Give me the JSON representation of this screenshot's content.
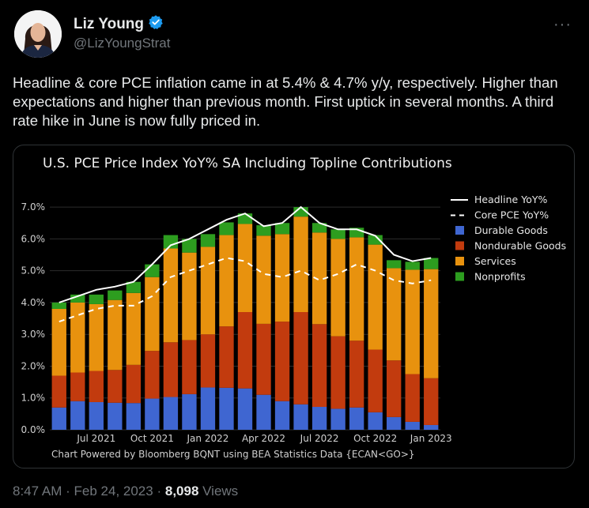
{
  "tweet": {
    "author_name": "Liz Young",
    "handle": "@LizYoungStrat",
    "more_label": "···",
    "text": "Headline & core PCE inflation came in at 5.4% & 4.7% y/y, respectively. Higher than expectations and higher than previous month. First uptick in several months. A third rate hike in June is now fully priced in.",
    "time": "8:47 AM",
    "date": "Feb 24, 2023",
    "separator": "·",
    "views_count": "8,098",
    "views_label": "Views"
  },
  "colors": {
    "background": "#000000",
    "durable": "#3f66d1",
    "nondurable": "#c23b0e",
    "services": "#e8920e",
    "nonprofits": "#2d9d1f",
    "headline": "#ffffff",
    "core": "#ffffff",
    "verified_badge": "#1d9bf0"
  },
  "icons": {
    "verified": "verified-badge-icon",
    "more": "more-options-icon"
  },
  "chart_data": {
    "type": "bar",
    "stacked": true,
    "title": "U.S. PCE Price Index YoY% SA Including Topline Contributions",
    "footer": "Chart Powered by Bloomberg BQNT using BEA Statistics Data    {ECAN<GO>}",
    "ylim": [
      0,
      7.4
    ],
    "yticks": [
      0,
      1,
      2,
      3,
      4,
      5,
      6,
      7
    ],
    "ytick_labels": [
      "0.0%",
      "1.0%",
      "2.0%",
      "3.0%",
      "4.0%",
      "5.0%",
      "6.0%",
      "7.0%"
    ],
    "x_tick_labels": [
      {
        "index": 2,
        "label": "Jul 2021"
      },
      {
        "index": 5,
        "label": "Oct 2021"
      },
      {
        "index": 8,
        "label": "Jan 2022"
      },
      {
        "index": 11,
        "label": "Apr 2022"
      },
      {
        "index": 14,
        "label": "Jul 2022"
      },
      {
        "index": 17,
        "label": "Oct 2022"
      },
      {
        "index": 20,
        "label": "Jan 2023"
      }
    ],
    "legend_position": "right",
    "legend": [
      {
        "key": "headline",
        "label": "Headline YoY%",
        "style": "line"
      },
      {
        "key": "core",
        "label": "Core PCE YoY%",
        "style": "dashed"
      },
      {
        "key": "durable",
        "label": "Durable Goods",
        "style": "box"
      },
      {
        "key": "nondurable",
        "label": "Nondurable Goods",
        "style": "box"
      },
      {
        "key": "services",
        "label": "Services",
        "style": "box"
      },
      {
        "key": "nonprofits",
        "label": "Nonprofits",
        "style": "box"
      }
    ],
    "series": [
      {
        "key": "durable",
        "values": [
          0.7,
          0.9,
          0.87,
          0.85,
          0.84,
          0.98,
          1.03,
          1.12,
          1.33,
          1.32,
          1.3,
          1.1,
          0.9,
          0.8,
          0.72,
          0.66,
          0.7,
          0.55,
          0.4,
          0.25,
          0.15
        ]
      },
      {
        "key": "nondurable",
        "values": [
          1.0,
          0.9,
          0.98,
          1.03,
          1.2,
          1.5,
          1.72,
          1.7,
          1.67,
          1.93,
          2.4,
          2.23,
          2.5,
          2.9,
          2.6,
          2.28,
          2.1,
          1.97,
          1.78,
          1.5,
          1.47
        ]
      },
      {
        "key": "services",
        "values": [
          2.1,
          2.2,
          2.1,
          2.2,
          2.26,
          2.32,
          2.95,
          2.75,
          2.75,
          2.87,
          2.77,
          2.77,
          2.75,
          3.0,
          2.88,
          3.06,
          3.25,
          3.3,
          2.9,
          3.28,
          3.43
        ]
      },
      {
        "key": "nonprofits",
        "values": [
          0.2,
          0.25,
          0.3,
          0.3,
          0.35,
          0.4,
          0.42,
          0.43,
          0.4,
          0.4,
          0.33,
          0.33,
          0.35,
          0.3,
          0.3,
          0.3,
          0.3,
          0.3,
          0.25,
          0.25,
          0.35
        ]
      }
    ],
    "lines": [
      {
        "key": "headline",
        "values": [
          4.0,
          4.2,
          4.4,
          4.5,
          4.65,
          5.2,
          5.8,
          6.0,
          6.3,
          6.6,
          6.8,
          6.4,
          6.5,
          7.0,
          6.5,
          6.3,
          6.3,
          6.1,
          5.5,
          5.3,
          5.4
        ]
      },
      {
        "key": "core",
        "values": [
          3.4,
          3.6,
          3.8,
          3.9,
          3.9,
          4.2,
          4.8,
          5.0,
          5.2,
          5.4,
          5.3,
          4.9,
          4.8,
          5.0,
          4.7,
          4.9,
          5.2,
          5.0,
          4.7,
          4.6,
          4.7
        ]
      }
    ]
  }
}
